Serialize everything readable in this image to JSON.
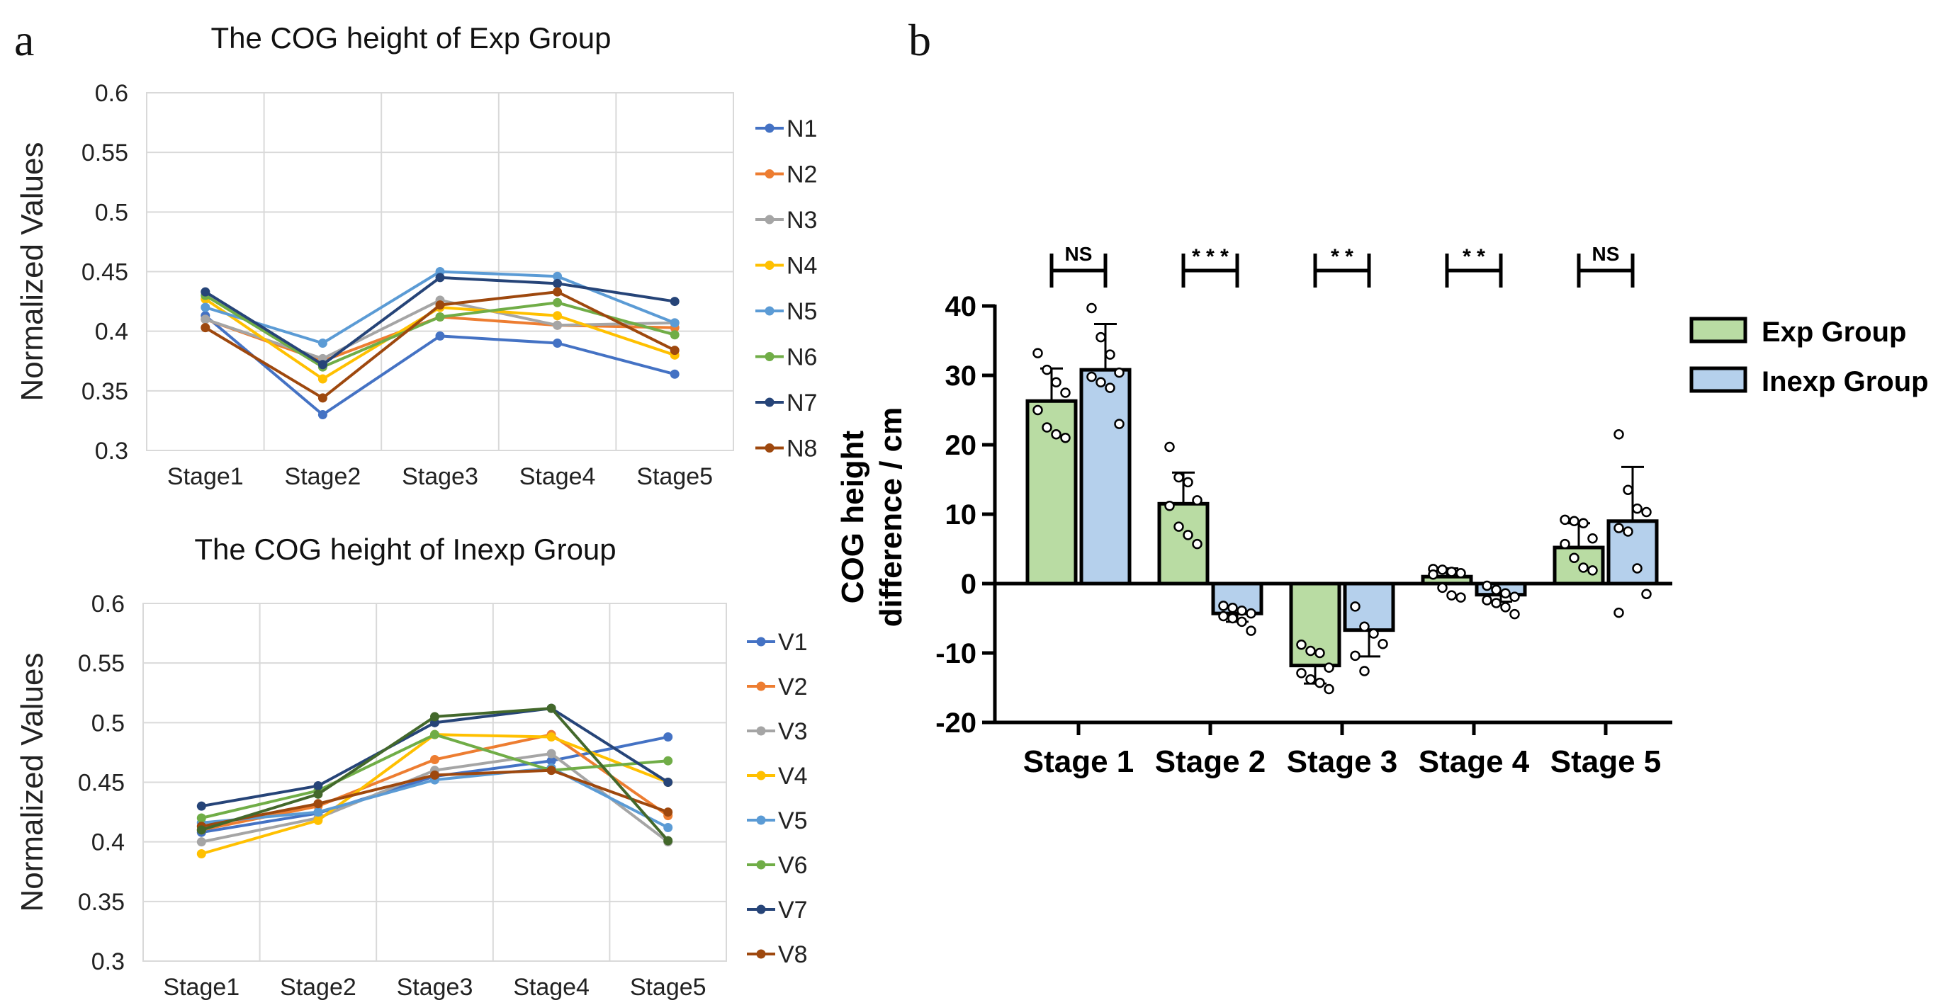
{
  "panel_labels": {
    "a": "a",
    "b": "b"
  },
  "chart_data": [
    {
      "type": "line",
      "title": "The COG height of Exp Group",
      "ylabel": "Normalized Values",
      "xlabel": "",
      "categories": [
        "Stage1",
        "Stage2",
        "Stage3",
        "Stage4",
        "Stage5"
      ],
      "ylim": [
        0.3,
        0.6
      ],
      "yticks": [
        "0.3",
        "0.35",
        "0.4",
        "0.45",
        "0.5",
        "0.55",
        "0.6"
      ],
      "grid": true,
      "legend_position": "right",
      "series": [
        {
          "name": "N1",
          "color": "#4472C4",
          "values": [
            0.413,
            0.33,
            0.396,
            0.39,
            0.364
          ]
        },
        {
          "name": "N2",
          "color": "#ED7D31",
          "values": [
            0.41,
            0.375,
            0.412,
            0.405,
            0.403
          ]
        },
        {
          "name": "N3",
          "color": "#A5A5A5",
          "values": [
            0.41,
            0.377,
            0.426,
            0.405,
            0.407
          ]
        },
        {
          "name": "N4",
          "color": "#FFC000",
          "values": [
            0.427,
            0.36,
            0.42,
            0.413,
            0.38
          ]
        },
        {
          "name": "N5",
          "color": "#5B9BD5",
          "values": [
            0.42,
            0.39,
            0.45,
            0.446,
            0.407
          ]
        },
        {
          "name": "N6",
          "color": "#70AD47",
          "values": [
            0.43,
            0.37,
            0.412,
            0.424,
            0.397
          ]
        },
        {
          "name": "N7",
          "color": "#264478",
          "values": [
            0.433,
            0.372,
            0.445,
            0.44,
            0.425
          ]
        },
        {
          "name": "N8",
          "color": "#9E480E",
          "values": [
            0.403,
            0.344,
            0.422,
            0.433,
            0.384
          ]
        }
      ]
    },
    {
      "type": "line",
      "title": "The COG height of Inexp Group",
      "ylabel": "Normalized Values",
      "xlabel": "",
      "categories": [
        "Stage1",
        "Stage2",
        "Stage3",
        "Stage4",
        "Stage5"
      ],
      "ylim": [
        0.3,
        0.6
      ],
      "yticks": [
        "0.3",
        "0.35",
        "0.4",
        "0.45",
        "0.5",
        "0.55",
        "0.6"
      ],
      "grid": true,
      "legend_position": "right",
      "series": [
        {
          "name": "V1",
          "color": "#4472C4",
          "values": [
            0.408,
            0.424,
            0.455,
            0.468,
            0.488
          ]
        },
        {
          "name": "V2",
          "color": "#ED7D31",
          "values": [
            0.41,
            0.43,
            0.469,
            0.49,
            0.422
          ]
        },
        {
          "name": "V3",
          "color": "#A5A5A5",
          "values": [
            0.4,
            0.42,
            0.46,
            0.474,
            0.4
          ]
        },
        {
          "name": "V4",
          "color": "#FFC000",
          "values": [
            0.39,
            0.418,
            0.49,
            0.488,
            0.45
          ]
        },
        {
          "name": "V5",
          "color": "#5B9BD5",
          "values": [
            0.416,
            0.425,
            0.452,
            0.462,
            0.412
          ]
        },
        {
          "name": "V6",
          "color": "#70AD47",
          "values": [
            0.42,
            0.443,
            0.49,
            0.46,
            0.468
          ]
        },
        {
          "name": "V7",
          "color": "#264478",
          "values": [
            0.43,
            0.447,
            0.5,
            0.512,
            0.45
          ]
        },
        {
          "name": "V8",
          "color": "#9E480E",
          "values": [
            0.413,
            0.432,
            0.456,
            0.46,
            0.425
          ]
        },
        {
          "name": "",
          "color": "#43682B",
          "values": [
            0.41,
            0.44,
            0.505,
            0.512,
            0.401
          ]
        }
      ]
    },
    {
      "type": "bar",
      "ylabel": "COG height\ndifference / cm",
      "ylabel_lines": [
        "COG height",
        "difference / cm"
      ],
      "categories": [
        "Stage 1",
        "Stage 2",
        "Stage 3",
        "Stage 4",
        "Stage 5"
      ],
      "ylim": [
        -20,
        40
      ],
      "yticks": [
        "-20",
        "-10",
        "0",
        "10",
        "20",
        "30",
        "40"
      ],
      "legend_position": "right",
      "significance": [
        "NS",
        "* * *",
        "* *",
        "* *",
        "NS"
      ],
      "series": [
        {
          "name": "Exp Group",
          "color": "#B9DCA3",
          "values": [
            26.3,
            11.5,
            -11.8,
            1.0,
            5.2
          ],
          "errors": [
            4.7,
            4.5,
            2.6,
            1.2,
            3.5
          ],
          "points": [
            [
              33.2,
              30.8,
              29.0,
              27.5,
              25.0,
              22.5,
              21.5,
              21.0
            ],
            [
              19.7,
              15.3,
              14.6,
              12.0,
              11.2,
              8.2,
              7.0,
              5.7
            ],
            [
              -8.8,
              -9.7,
              -10.0,
              -12.1,
              -12.9,
              -13.8,
              -14.3,
              -15.2
            ],
            [
              2.1,
              2.0,
              1.7,
              1.5,
              1.3,
              -0.6,
              -1.7,
              -2.0
            ],
            [
              9.2,
              9.0,
              8.7,
              6.5,
              5.7,
              3.7,
              2.3,
              1.9
            ]
          ]
        },
        {
          "name": "Inexp Group",
          "color": "#B5D0EC",
          "values": [
            30.8,
            -4.3,
            -6.7,
            -1.6,
            9.0
          ],
          "errors": [
            6.6,
            1.2,
            3.8,
            1.0,
            7.8
          ],
          "points": [
            [
              39.7,
              35.5,
              33.0,
              30.4,
              29.8,
              29.0,
              28.2,
              23.0
            ],
            [
              -3.2,
              -3.5,
              -3.9,
              -4.3,
              -4.7,
              -5.0,
              -5.5,
              -6.8
            ],
            [
              -3.3,
              -6.2,
              -7.2,
              -8.7,
              -10.4,
              -12.6
            ],
            [
              -0.3,
              -0.9,
              -1.4,
              -1.9,
              -2.4,
              -2.8,
              -3.4,
              -4.4
            ],
            [
              21.5,
              13.5,
              10.8,
              10.3,
              8.0,
              7.5,
              2.2,
              -1.5,
              -4.2
            ]
          ]
        }
      ]
    }
  ]
}
